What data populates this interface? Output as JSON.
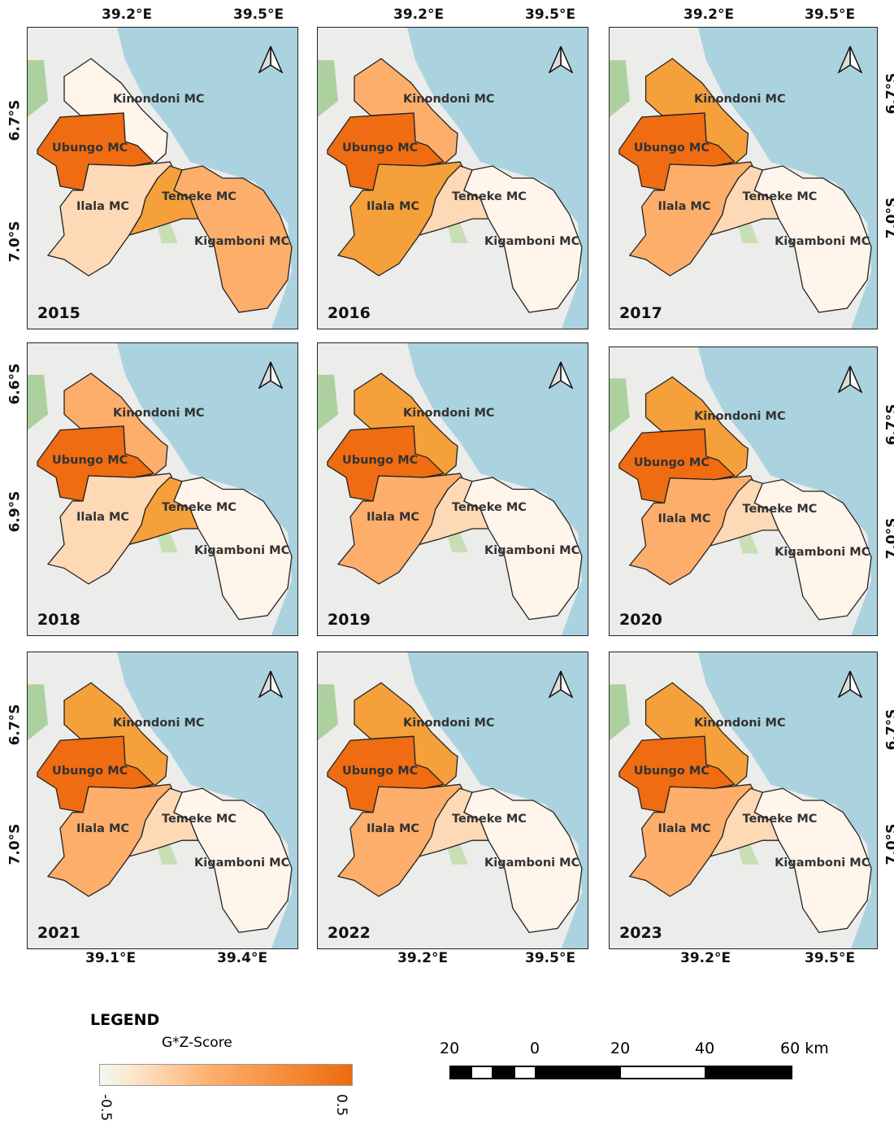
{
  "classes": {
    "c0": "#fff5eb",
    "c1": "#fdd9b5",
    "c2": "#fdae6b",
    "c3": "#f5a03a",
    "c4": "#ef6c12"
  },
  "districts": [
    "Kinondoni MC",
    "Ubungo MC",
    "Ilala MC",
    "Temeke MC",
    "Kigamboni MC"
  ],
  "panels": [
    {
      "year": "2015",
      "fill": {
        "Kinondoni MC": "c0",
        "Ubungo MC": "c4",
        "Ilala MC": "c1",
        "Temeke MC": "c3",
        "Kigamboni MC": "c2"
      }
    },
    {
      "year": "2016",
      "fill": {
        "Kinondoni MC": "c2",
        "Ubungo MC": "c4",
        "Ilala MC": "c3",
        "Temeke MC": "c1",
        "Kigamboni MC": "c0"
      }
    },
    {
      "year": "2017",
      "fill": {
        "Kinondoni MC": "c3",
        "Ubungo MC": "c4",
        "Ilala MC": "c2",
        "Temeke MC": "c1",
        "Kigamboni MC": "c0"
      }
    },
    {
      "year": "2018",
      "fill": {
        "Kinondoni MC": "c2",
        "Ubungo MC": "c4",
        "Ilala MC": "c1",
        "Temeke MC": "c3",
        "Kigamboni MC": "c0"
      }
    },
    {
      "year": "2019",
      "fill": {
        "Kinondoni MC": "c3",
        "Ubungo MC": "c4",
        "Ilala MC": "c2",
        "Temeke MC": "c1",
        "Kigamboni MC": "c0"
      }
    },
    {
      "year": "2020",
      "fill": {
        "Kinondoni MC": "c3",
        "Ubungo MC": "c4",
        "Ilala MC": "c2",
        "Temeke MC": "c1",
        "Kigamboni MC": "c0"
      }
    },
    {
      "year": "2021",
      "fill": {
        "Kinondoni MC": "c3",
        "Ubungo MC": "c4",
        "Ilala MC": "c2",
        "Temeke MC": "c1",
        "Kigamboni MC": "c0"
      }
    },
    {
      "year": "2022",
      "fill": {
        "Kinondoni MC": "c3",
        "Ubungo MC": "c4",
        "Ilala MC": "c2",
        "Temeke MC": "c1",
        "Kigamboni MC": "c0"
      }
    },
    {
      "year": "2023",
      "fill": {
        "Kinondoni MC": "c3",
        "Ubungo MC": "c4",
        "Ilala MC": "c2",
        "Temeke MC": "c1",
        "Kigamboni MC": "c0"
      }
    }
  ],
  "axes": {
    "top": [
      [
        "39.2°E",
        "39.5°E"
      ],
      [
        "39.2°E",
        "39.5°E"
      ],
      [
        "39.2°E",
        "39.5°E"
      ]
    ],
    "bottom": [
      [
        "39.1°E",
        "39.4°E"
      ],
      [
        "39.2°E",
        "39.5°E"
      ],
      [
        "39.2°E",
        "39.5°E"
      ]
    ],
    "left": [
      [
        "6.7°S",
        "7.0°S"
      ],
      [
        "6.6°S",
        "6.9°S"
      ],
      [
        "6.7°S",
        "7.0°S"
      ]
    ],
    "right": [
      [
        "6.7°S",
        "7.0°S"
      ],
      [
        "6.7°S",
        "7.0°S"
      ],
      [
        "6.7°S",
        "7.0°S"
      ]
    ]
  },
  "legend": {
    "title": "LEGEND",
    "field": "G*Z-Score",
    "min": "-0.5",
    "max": "0.5"
  },
  "scalebar": {
    "labels": [
      "20",
      "0",
      "20",
      "40",
      "60 km"
    ]
  }
}
